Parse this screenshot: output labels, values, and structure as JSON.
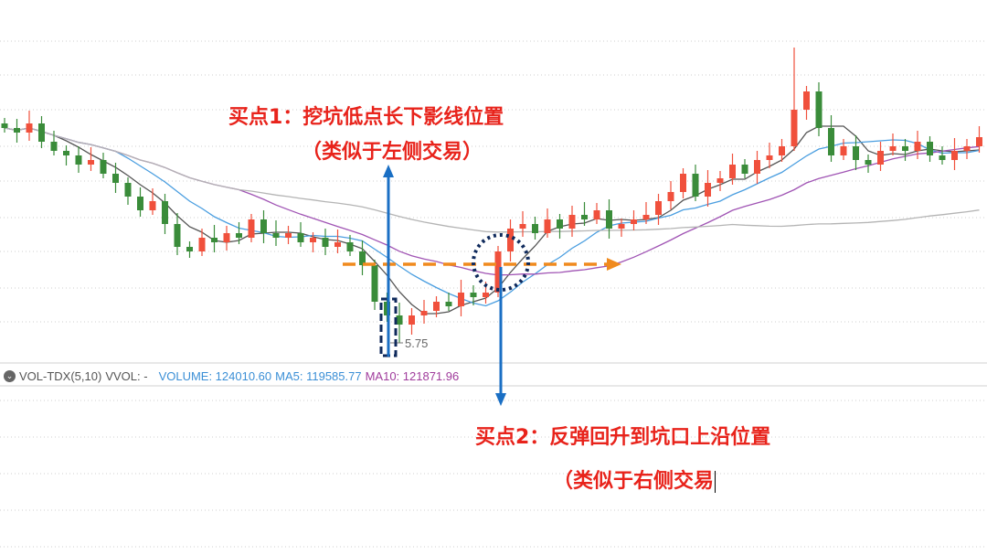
{
  "chart_data": {
    "type": "candlestick",
    "title": "",
    "xlabel": "",
    "ylabel": "",
    "grid": "dotted horizontal",
    "closes": [
      8.1,
      8.05,
      8.15,
      7.95,
      7.85,
      7.8,
      7.7,
      7.75,
      7.6,
      7.5,
      7.35,
      7.2,
      7.3,
      7.05,
      6.8,
      6.75,
      6.9,
      6.85,
      6.95,
      6.9,
      7.1,
      6.95,
      6.9,
      6.95,
      6.85,
      6.9,
      6.8,
      6.85,
      6.75,
      6.6,
      6.2,
      6.05,
      5.95,
      6.05,
      6.1,
      6.2,
      6.15,
      6.3,
      6.25,
      6.3,
      6.75,
      7.0,
      7.05,
      6.95,
      7.1,
      7.0,
      7.15,
      7.1,
      7.2,
      7.0,
      7.05,
      7.1,
      7.15,
      7.3,
      7.4,
      7.6,
      7.35,
      7.5,
      7.55,
      7.7,
      7.6,
      7.75,
      7.8,
      7.9,
      8.3,
      8.5,
      8.1,
      7.8,
      7.9,
      7.75,
      7.7,
      7.85,
      7.9,
      7.85,
      7.95,
      7.8,
      7.75,
      7.85,
      7.9,
      8.0
    ],
    "low_marker": {
      "label": "5.75",
      "value": 5.75
    },
    "moving_averages": [
      {
        "period": 5,
        "color": "#555555"
      },
      {
        "period": 10,
        "color": "#4a9ee0"
      },
      {
        "period": 20,
        "color": "#a054b4"
      },
      {
        "period": 60,
        "color": "#b4b4b4"
      }
    ],
    "up_color": "#f0503c",
    "down_color": "#3a8c3a"
  },
  "volume_legend": {
    "indicator": "VOL-TDX(5,10)",
    "vvol": "VVOL: -",
    "volume": "VOLUME: 124010.60",
    "ma5": "MA5: 119585.77",
    "ma10": "MA10: 121871.96",
    "volume_color": "#3b8fd6",
    "ma10_color": "#a03c9c"
  },
  "annotations": {
    "buy1_title": "买点1：挖坑低点长下影线位置",
    "buy1_note": "（类似于左侧交易）",
    "buy2_title": "买点2：反弹回升到坑口上沿位置",
    "buy2_note": "（类似于右侧交易",
    "arrow_color": "#1a6fc4",
    "guide_color": "#f08a1e",
    "circle_color": "#0f2a5c"
  }
}
